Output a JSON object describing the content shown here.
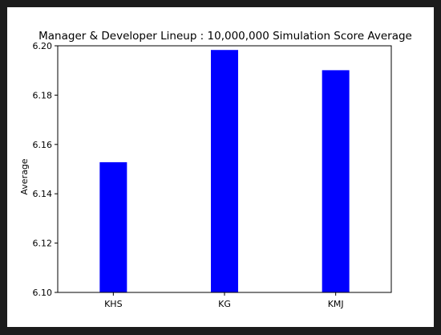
{
  "chart_data": {
    "type": "bar",
    "title": "Manager & Developer Lineup : 10,000,000 Simulation Score Average",
    "xlabel": "",
    "ylabel": "Average",
    "categories": [
      "KHS",
      "KG",
      "KMJ"
    ],
    "values": [
      6.1528,
      6.1983,
      6.1901
    ],
    "ylim": [
      6.1,
      6.2
    ],
    "yticks": [
      "6.10",
      "6.12",
      "6.14",
      "6.16",
      "6.18",
      "6.20"
    ],
    "grid": false,
    "bar_color": "#0000ff"
  }
}
